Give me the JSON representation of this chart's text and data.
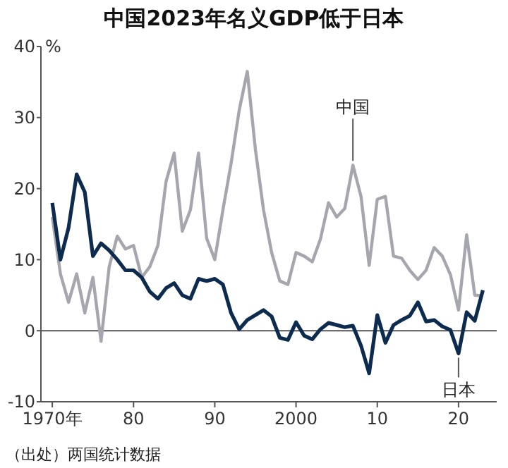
{
  "chart_data": {
    "type": "line",
    "title": "中国2023年名义GDP低于日本",
    "ylabel": "%",
    "x": [
      1970,
      1971,
      1972,
      1973,
      1974,
      1975,
      1976,
      1977,
      1978,
      1979,
      1980,
      1981,
      1982,
      1983,
      1984,
      1985,
      1986,
      1987,
      1988,
      1989,
      1990,
      1991,
      1992,
      1993,
      1994,
      1995,
      1996,
      1997,
      1998,
      1999,
      2000,
      2001,
      2002,
      2003,
      2004,
      2005,
      2006,
      2007,
      2008,
      2009,
      2010,
      2011,
      2012,
      2013,
      2014,
      2015,
      2016,
      2017,
      2018,
      2019,
      2020,
      2021,
      2022,
      2023
    ],
    "series": [
      {
        "color": "#a6a6ae",
        "values": [
          16,
          8,
          4,
          8,
          2.5,
          7.5,
          -1.5,
          9,
          13.3,
          11.5,
          12,
          7.5,
          9,
          12,
          21,
          25,
          14,
          17,
          25,
          13,
          10,
          17,
          23.5,
          31,
          36.5,
          25.5,
          17,
          11,
          7,
          6.5,
          11,
          10.5,
          9.7,
          12.9,
          18,
          16,
          17.2,
          23.3,
          18.9,
          9.2,
          18.5,
          18.9,
          10.5,
          10.2,
          8.5,
          7.2,
          8.5,
          11.7,
          10.5,
          7.9,
          2.9,
          13.5,
          5,
          4.9
        ]
      },
      {
        "color": "#0d2b4e",
        "values": [
          18,
          10,
          14.5,
          22,
          19.5,
          10.5,
          12.3,
          11.3,
          10,
          8.5,
          8.5,
          7.5,
          5.5,
          4.5,
          6,
          6.7,
          5,
          4.5,
          7.3,
          7,
          7.3,
          6.5,
          2.5,
          0.2,
          1.5,
          2.2,
          2.9,
          2,
          -1,
          -1.3,
          1.2,
          -0.7,
          -1.2,
          0.2,
          1.1,
          0.8,
          0.5,
          0.7,
          -2.1,
          -6,
          2.2,
          -1.7,
          0.8,
          1.5,
          2.1,
          4,
          1.3,
          1.5,
          0.6,
          0.1,
          -3.2,
          2.6,
          1.4,
          5.7
        ]
      }
    ],
    "xlim": [
      1968.6,
      2024.7
    ],
    "xticks": [
      {
        "value": 1970,
        "label": "1970年"
      },
      {
        "value": 1980,
        "label": "80"
      },
      {
        "value": 1990,
        "label": "90"
      },
      2000,
      {
        "value": 2010,
        "label": "10"
      },
      {
        "value": 2020,
        "label": "20"
      }
    ],
    "ylim": [
      -10,
      40
    ],
    "yticks": [
      -10,
      0,
      10,
      20,
      30,
      40
    ],
    "ref_lines": [
      {
        "axis": "y",
        "value": 0,
        "color": "#555555"
      }
    ],
    "annotations": [
      {
        "text": "中国",
        "x": 2007,
        "y": 23.3
      },
      {
        "text": "日本",
        "x": 2020,
        "y": -3.2
      },
      "（出处）两国统计数据"
    ],
    "grid": false
  }
}
